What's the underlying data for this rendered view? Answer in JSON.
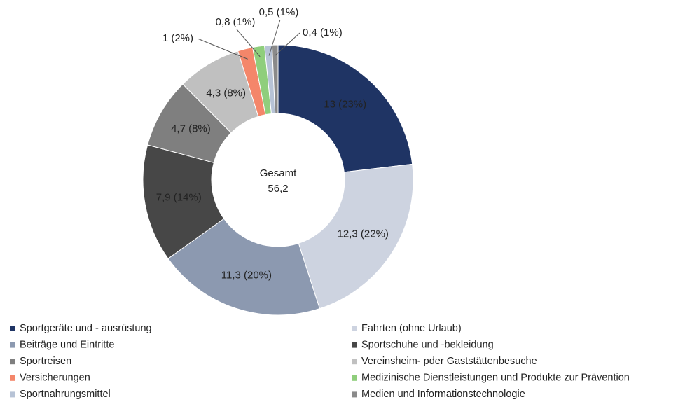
{
  "chart_data": {
    "type": "pie",
    "categories": [
      "Sportgeräte und - ausrüstung",
      "Fahrten (ohne Urlaub)",
      "Beiträge und Eintritte",
      "Sportschuhe und -bekleidung",
      "Sportreisen",
      "Vereinsheim- pder Gaststättenbesuche",
      "Versicherungen",
      "Medizinische Dienstleistungen und Produkte zur Prävention",
      "Sportnahrungsmittel",
      "Medien und Informationstechnologie"
    ],
    "values": [
      13,
      12.3,
      11.3,
      7.9,
      4.7,
      4.3,
      1,
      0.8,
      0.5,
      0.4
    ],
    "value_labels": [
      "13 (23%)",
      "12,3 (22%)",
      "11,3 (20%)",
      "7,9 (14%)",
      "4,7 (8%)",
      "4,3 (8%)",
      "1 (2%)",
      "0,8 (1%)",
      "0,5 (1%)",
      "0,4 (1%)"
    ],
    "colors": [
      "#1f3464",
      "#cdd3e0",
      "#8c99b0",
      "#474747",
      "#7f7f7f",
      "#c0c0c0",
      "#f4866a",
      "#8fce7c",
      "#b7c3d6",
      "#8a8a8a"
    ],
    "center": {
      "label": "Gesamt",
      "value": 56.2,
      "value_label": "56,2"
    }
  }
}
